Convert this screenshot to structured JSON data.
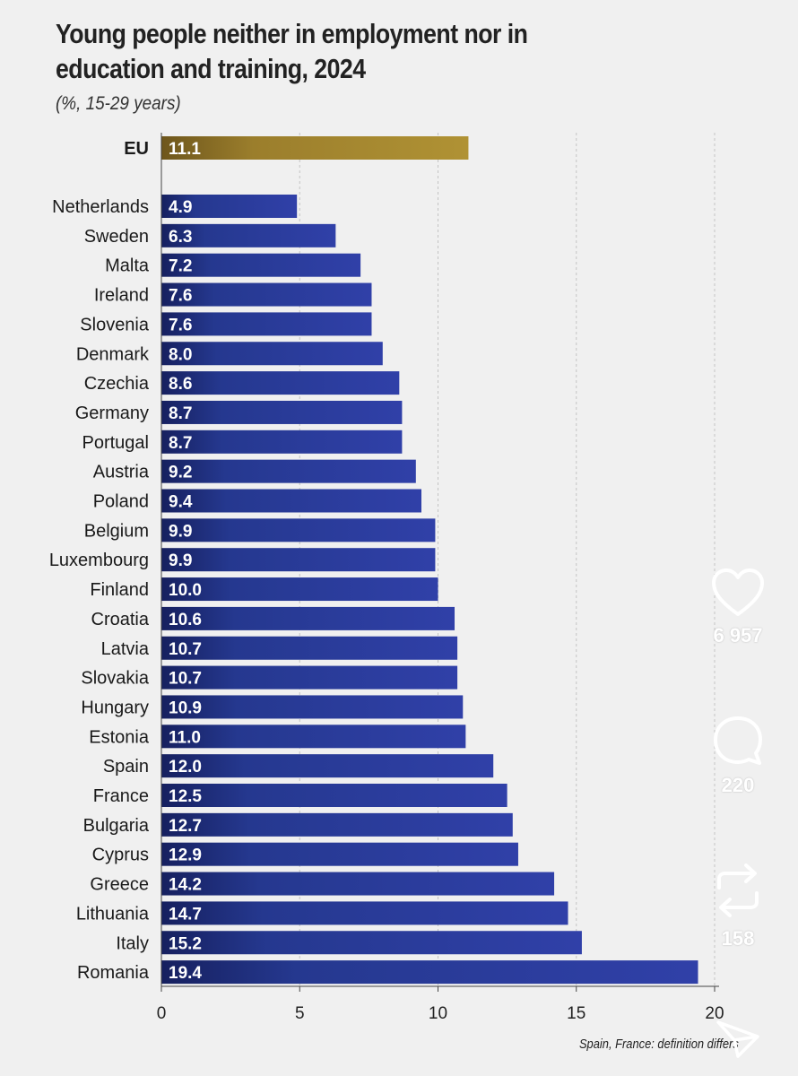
{
  "chart_data": {
    "type": "bar",
    "orientation": "horizontal",
    "title": "Young people neither in employment nor in education and training, 2024",
    "subtitle": "(%, 15-29 years)",
    "highlight": {
      "category": "EU",
      "value": 11.1,
      "label": "11.1",
      "color": "#a0802c"
    },
    "categories": [
      "Netherlands",
      "Sweden",
      "Malta",
      "Ireland",
      "Slovenia",
      "Denmark",
      "Czechia",
      "Germany",
      "Portugal",
      "Austria",
      "Poland",
      "Belgium",
      "Luxembourg",
      "Finland",
      "Croatia",
      "Latvia",
      "Slovakia",
      "Hungary",
      "Estonia",
      "Spain",
      "France",
      "Bulgaria",
      "Cyprus",
      "Greece",
      "Lithuania",
      "Italy",
      "Romania"
    ],
    "values": [
      4.9,
      6.3,
      7.2,
      7.6,
      7.6,
      8.0,
      8.6,
      8.7,
      8.7,
      9.2,
      9.4,
      9.9,
      9.9,
      10.0,
      10.6,
      10.7,
      10.7,
      10.9,
      11.0,
      12.0,
      12.5,
      12.7,
      12.9,
      14.2,
      14.7,
      15.2,
      19.4
    ],
    "value_labels": [
      "4.9",
      "6.3",
      "7.2",
      "7.6",
      "7.6",
      "8.0",
      "8.6",
      "8.7",
      "8.7",
      "9.2",
      "9.4",
      "9.9",
      "9.9",
      "10.0",
      "10.6",
      "10.7",
      "10.7",
      "10.9",
      "11.0",
      "12.0",
      "12.5",
      "12.7",
      "12.9",
      "14.2",
      "14.7",
      "15.2",
      "19.4"
    ],
    "xlim": [
      0,
      20
    ],
    "xticks": [
      0,
      5,
      10,
      15,
      20
    ],
    "xtick_labels": [
      "0",
      "5",
      "10",
      "15",
      "20"
    ],
    "grid": "vertical dashed",
    "bar_color": "#263a96",
    "footnote": "Spain, France: definition differs"
  },
  "social": {
    "likes": "6 957",
    "comments": "220",
    "reposts": "158"
  }
}
